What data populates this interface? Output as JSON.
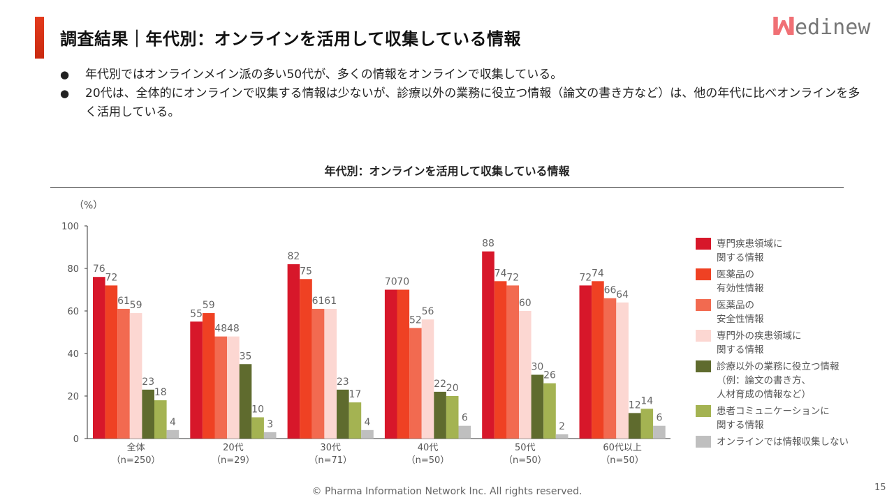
{
  "header": {
    "title": "調査結果｜年代別：オンラインを活用して収集している情報",
    "logo": "Medinew"
  },
  "bullets": [
    "年代別ではオンラインメイン派の多い50代が、多くの情報をオンラインで収集している。",
    "20代は、全体的にオンラインで収集する情報は少ないが、診療以外の業務に役立つ情報（論文の書き方など）は、他の年代に比べオンラインを多く活用している。"
  ],
  "chart_data": {
    "type": "bar",
    "title": "年代別：オンラインを活用して収集している情報",
    "ylabel": "（%）",
    "ylim": [
      0,
      100
    ],
    "yticks": [
      "0",
      "20",
      "40",
      "60",
      "80",
      "100"
    ],
    "categories": [
      [
        "全体",
        "（n=250）"
      ],
      [
        "20代",
        "（n=29）"
      ],
      [
        "30代",
        "（n=71）"
      ],
      [
        "40代",
        "（n=50）"
      ],
      [
        "50代",
        "（n=50）"
      ],
      [
        "60代以上",
        "（n=50）"
      ]
    ],
    "legend_position": "right",
    "series": [
      {
        "name": "専門疾患領域に関する情報",
        "legend_lines": [
          "専門疾患領域に",
          "関する情報"
        ],
        "color": "#D7172A",
        "values": [
          76,
          55,
          82,
          70,
          88,
          72
        ]
      },
      {
        "name": "医薬品の有効性情報",
        "legend_lines": [
          "医薬品の",
          "有効性情報"
        ],
        "color": "#EF4123",
        "values": [
          72,
          59,
          75,
          70,
          74,
          74
        ]
      },
      {
        "name": "医薬品の安全性情報",
        "legend_lines": [
          "医薬品の",
          "安全性情報"
        ],
        "color": "#F26A50",
        "values": [
          61,
          48,
          61,
          52,
          72,
          66
        ]
      },
      {
        "name": "専門外の疾患領域に関する情報",
        "legend_lines": [
          "専門外の疾患領域に",
          "関する情報"
        ],
        "color": "#FCD7D2",
        "values": [
          59,
          48,
          61,
          56,
          60,
          64
        ]
      },
      {
        "name": "診療以外の業務に役立つ情報（例：論文の書き方、人材育成の情報など）",
        "legend_lines": [
          "診療以外の業務に役立つ情報",
          "（例：論文の書き方、",
          "人材育成の情報など）"
        ],
        "color": "#5F6B2E",
        "values": [
          23,
          35,
          23,
          22,
          30,
          12
        ]
      },
      {
        "name": "患者コミュニケーションに関する情報",
        "legend_lines": [
          "患者コミュニケーションに",
          "関する情報"
        ],
        "color": "#A4B352",
        "values": [
          18,
          10,
          17,
          20,
          26,
          14
        ]
      },
      {
        "name": "オンラインでは情報収集しない",
        "legend_lines": [
          "オンラインでは情報収集しない"
        ],
        "color": "#BFBFBF",
        "values": [
          4,
          3,
          4,
          6,
          2,
          6
        ]
      }
    ]
  },
  "footer": {
    "copyright": "© Pharma Information Network Inc.  All rights reserved.",
    "page": "15"
  }
}
